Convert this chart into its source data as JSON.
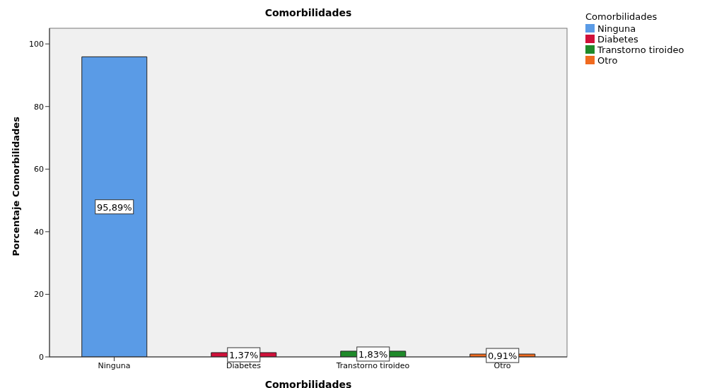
{
  "chart_data": {
    "type": "bar",
    "title": "Comorbilidades",
    "xlabel": "Comorbilidades",
    "ylabel": "Porcentaje Comorbilidades",
    "legend_title": "Comorbilidades",
    "categories": [
      "Ninguna",
      "Diabetes",
      "Transtorno tiroideo",
      "Otro"
    ],
    "stacked": true,
    "series": [
      {
        "name": "Ninguna",
        "color": "#5a9be6",
        "values": [
          95.89,
          null,
          null,
          null
        ],
        "value_labels": [
          "95,89%",
          null,
          null,
          null
        ]
      },
      {
        "name": "Diabetes",
        "color": "#d0103a",
        "values": [
          null,
          1.37,
          null,
          null
        ],
        "value_labels": [
          null,
          "1,37%",
          null,
          null
        ]
      },
      {
        "name": "Transtorno tiroideo",
        "color": "#1f8a2a",
        "values": [
          null,
          null,
          1.83,
          null
        ],
        "value_labels": [
          null,
          null,
          "1,83%",
          null
        ]
      },
      {
        "name": "Otro",
        "color": "#f06a1f",
        "values": [
          null,
          null,
          null,
          0.91
        ],
        "value_labels": [
          null,
          null,
          null,
          "0,91%"
        ]
      }
    ],
    "ylim": [
      0,
      105
    ],
    "yticks": [
      0,
      20,
      40,
      60,
      80,
      100
    ],
    "grid": false,
    "legend": "right"
  }
}
